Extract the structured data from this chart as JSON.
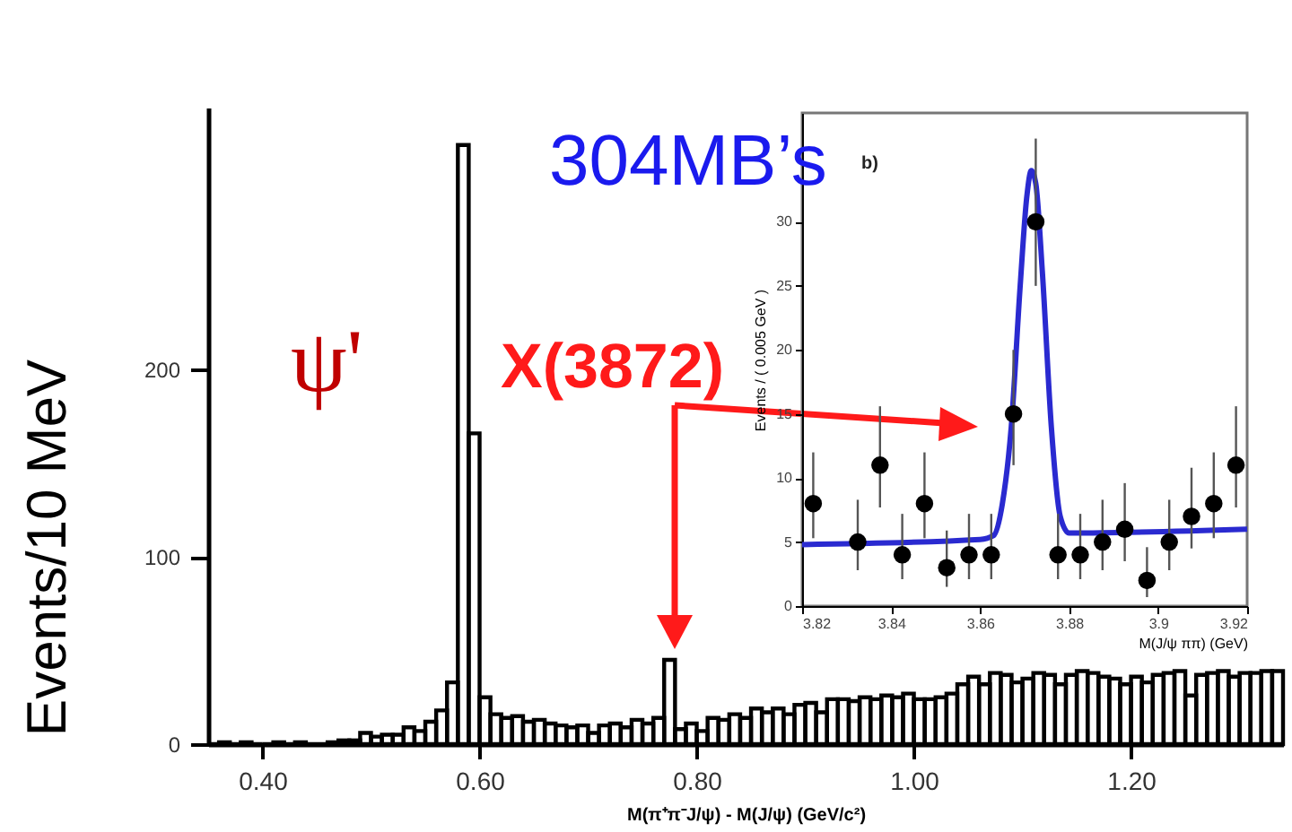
{
  "chart_data": [
    {
      "type": "histogram",
      "xlabel": "M(π⁺π⁻J/ψ) - M(J/ψ) (GeV/c²)",
      "ylabel": "Events/10 MeV",
      "color": "#000000",
      "bins": [
        0.35,
        0.36,
        0.37,
        0.38,
        0.39,
        0.4,
        0.41,
        0.42,
        0.43,
        0.44,
        0.45,
        0.46,
        0.47,
        0.48,
        0.49,
        0.5,
        0.51,
        0.52,
        0.53,
        0.54,
        0.55,
        0.56,
        0.57,
        0.58,
        0.59,
        0.6,
        0.61,
        0.62,
        0.63,
        0.64,
        0.65,
        0.66,
        0.67,
        0.68,
        0.69,
        0.7,
        0.71,
        0.72,
        0.73,
        0.74,
        0.75,
        0.76,
        0.77,
        0.78,
        0.79,
        0.8,
        0.81,
        0.82,
        0.83,
        0.84,
        0.85,
        0.86,
        0.87,
        0.88,
        0.89,
        0.9,
        0.91,
        0.92,
        0.93,
        0.94,
        0.95,
        0.96,
        0.97,
        0.98,
        0.99,
        1.0,
        1.01,
        1.02,
        1.03,
        1.04,
        1.05,
        1.06,
        1.07,
        1.08,
        1.09,
        1.1,
        1.11,
        1.12,
        1.13,
        1.14,
        1.15,
        1.16,
        1.17,
        1.18,
        1.19,
        1.2,
        1.21,
        1.22,
        1.23,
        1.24,
        1.25,
        1.26,
        1.27,
        1.28,
        1.29,
        1.3,
        1.31,
        1.32,
        1.33,
        1.34
      ],
      "values": [
        0,
        1,
        0,
        1,
        0,
        0,
        1,
        0,
        1,
        0,
        0,
        1,
        2,
        2,
        6,
        4,
        5,
        5,
        9,
        7,
        12,
        18,
        33,
        320,
        166,
        25,
        16,
        14,
        15,
        12,
        13,
        11,
        10,
        9,
        10,
        6,
        10,
        11,
        9,
        13,
        11,
        14,
        45,
        8,
        11,
        7,
        14,
        13,
        16,
        14,
        19,
        17,
        19,
        16,
        21,
        22,
        17,
        24,
        24,
        23,
        25,
        24,
        26,
        25,
        27,
        24,
        24,
        25,
        27,
        32,
        36,
        32,
        38,
        37,
        33,
        35,
        38,
        37,
        32,
        37,
        39,
        38,
        36,
        35,
        32,
        36,
        33,
        37,
        38,
        39,
        26,
        37,
        38,
        39,
        36,
        38,
        38,
        39,
        39
      ],
      "xlim": [
        0.35,
        1.34
      ],
      "ylim": [
        0,
        340
      ],
      "xticks": [
        {
          "value": 0.4,
          "label": "0.40"
        },
        {
          "value": 0.6,
          "label": "0.60"
        },
        {
          "value": 0.8,
          "label": "0.80"
        },
        {
          "value": 1.0,
          "label": "1.00"
        },
        {
          "value": 1.2,
          "label": "1.20"
        }
      ],
      "yticks": [
        0,
        100,
        200
      ],
      "annotations": [
        "ψ'",
        "X(3872)",
        "304MB’s"
      ]
    },
    {
      "type": "scatter",
      "xlabel": "M(J/ψ ππ) (GeV)",
      "ylabel": "Events / ( 0.005 GeV )",
      "xlim": [
        3.82,
        3.92
      ],
      "ylim": [
        0,
        38.5
      ],
      "xticks": [
        3.82,
        3.84,
        3.86,
        3.88,
        3.9,
        3.92
      ],
      "yticks": [
        0,
        5,
        10,
        15,
        20,
        25,
        30
      ],
      "series": [
        {
          "type": "scatter",
          "color": "#000000",
          "marker": "circle",
          "x": [
            3.8225,
            3.8325,
            3.8375,
            3.8425,
            3.8475,
            3.8525,
            3.8575,
            3.8625,
            3.8675,
            3.8725,
            3.8775,
            3.8825,
            3.8875,
            3.8925,
            3.8975,
            3.9025,
            3.9075,
            3.9125,
            3.9175
          ],
          "values": [
            8,
            5,
            11,
            4,
            8,
            3,
            4,
            4,
            15,
            30,
            4,
            4,
            5,
            6,
            2,
            5,
            7,
            8,
            11
          ],
          "errors": [
            [
              5.3,
              12
            ],
            [
              2.8,
              8.3
            ],
            [
              7.7,
              15.6
            ],
            [
              2.1,
              7.2
            ],
            [
              5.3,
              12
            ],
            [
              1.5,
              5.9
            ],
            [
              2.1,
              7.2
            ],
            [
              2.1,
              7.2
            ],
            [
              11,
              20
            ],
            [
              25,
              36.5
            ],
            [
              2.1,
              7.2
            ],
            [
              2.1,
              7.2
            ],
            [
              2.8,
              8.3
            ],
            [
              3.5,
              9.6
            ],
            [
              0.7,
              4.6
            ],
            [
              2.8,
              8.3
            ],
            [
              4.5,
              10.8
            ],
            [
              5.3,
              12
            ],
            [
              7.7,
              15.6
            ]
          ]
        },
        {
          "type": "line",
          "color": "#2a2ad0",
          "x": [
            3.82,
            3.86,
            3.863,
            3.865,
            3.867,
            3.869,
            3.8705,
            3.8715,
            3.8725,
            3.874,
            3.876,
            3.878,
            3.88,
            3.92
          ],
          "values": [
            4.8,
            5.2,
            5.5,
            8,
            14,
            25,
            32,
            34,
            33,
            26,
            14,
            7,
            5.7,
            6
          ]
        }
      ],
      "annotations": [
        "b)"
      ]
    }
  ]
}
